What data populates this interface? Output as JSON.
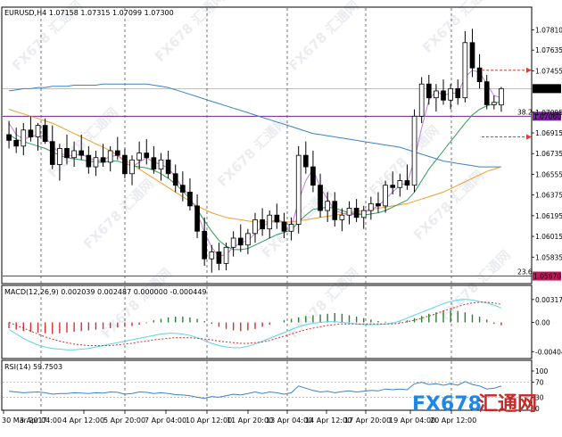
{
  "chart_data": [
    {
      "type": "candlestick",
      "header": "EURUSD,H4  1.07158 1.07315 1.07099 1.07300",
      "y_ticks": [
        "1.07810",
        "1.07635",
        "1.07455",
        "1.07300",
        "1.07095",
        "1.06915",
        "1.06735",
        "1.06555",
        "1.06375",
        "1.06195",
        "1.06015",
        "1.05835"
      ],
      "ylim": [
        1.0562,
        1.079
      ],
      "x_ticks": [
        "30 Mar 2017",
        "3 Apr 04:00",
        "4 Apr 12:00",
        "5 Apr 20:00",
        "7 Apr 04:00",
        "10 Apr 12:00",
        "11 Apr 20:00",
        "13 Apr 04:00",
        "14 Apr 12:00",
        "17 Apr 20:00",
        "19 Apr 04:00",
        "20 Apr 12:00"
      ],
      "levels": [
        {
          "label": "1.07300",
          "value": 1.073,
          "color": "#000000"
        },
        {
          "label": "1.07060",
          "value": 1.0706,
          "color": "#7b1fa2",
          "fib": "38.2"
        },
        {
          "label": "1.05670",
          "value": 1.0567,
          "color": "#c2185b",
          "fib": "23.6"
        }
      ],
      "candles": [
        [
          1.069,
          1.0702,
          1.0678,
          1.0685
        ],
        [
          1.0685,
          1.0696,
          1.0674,
          1.068
        ],
        [
          1.068,
          1.07,
          1.0672,
          1.0694
        ],
        [
          1.0694,
          1.0706,
          1.0684,
          1.0688
        ],
        [
          1.0688,
          1.07,
          1.0676,
          1.0698
        ],
        [
          1.0698,
          1.0704,
          1.0682,
          1.0684
        ],
        [
          1.0684,
          1.0698,
          1.066,
          1.0664
        ],
        [
          1.0664,
          1.0682,
          1.065,
          1.0678
        ],
        [
          1.0678,
          1.069,
          1.0664,
          1.067
        ],
        [
          1.067,
          1.0684,
          1.0662,
          1.0676
        ],
        [
          1.0676,
          1.069,
          1.0668,
          1.0672
        ],
        [
          1.0672,
          1.068,
          1.0656,
          1.0662
        ],
        [
          1.0662,
          1.0676,
          1.0654,
          1.067
        ],
        [
          1.067,
          1.0682,
          1.0662,
          1.0666
        ],
        [
          1.0666,
          1.068,
          1.0658,
          1.0676
        ],
        [
          1.0676,
          1.0688,
          1.0668,
          1.0672
        ],
        [
          1.0672,
          1.0678,
          1.0652,
          1.0656
        ],
        [
          1.0656,
          1.0672,
          1.0646,
          1.0668
        ],
        [
          1.0668,
          1.0684,
          1.066,
          1.0674
        ],
        [
          1.0674,
          1.0686,
          1.0664,
          1.067
        ],
        [
          1.067,
          1.068,
          1.0656,
          1.066
        ],
        [
          1.066,
          1.0674,
          1.065,
          1.0668
        ],
        [
          1.0668,
          1.0676,
          1.0652,
          1.0656
        ],
        [
          1.0656,
          1.0664,
          1.064,
          1.0646
        ],
        [
          1.0646,
          1.0658,
          1.0632,
          1.064
        ],
        [
          1.064,
          1.0652,
          1.0624,
          1.0628
        ],
        [
          1.0628,
          1.0638,
          1.06,
          1.0606
        ],
        [
          1.0606,
          1.0618,
          1.0576,
          1.0582
        ],
        [
          1.0582,
          1.0594,
          1.057,
          1.0588
        ],
        [
          1.0588,
          1.0596,
          1.0572,
          1.0578
        ],
        [
          1.0578,
          1.0596,
          1.0572,
          1.0592
        ],
        [
          1.0592,
          1.0606,
          1.0584,
          1.06
        ],
        [
          1.06,
          1.0612,
          1.0588,
          1.0594
        ],
        [
          1.0594,
          1.0608,
          1.0586,
          1.0604
        ],
        [
          1.0604,
          1.0622,
          1.0596,
          1.0616
        ],
        [
          1.0616,
          1.0626,
          1.0602,
          1.0608
        ],
        [
          1.0608,
          1.0624,
          1.06,
          1.062
        ],
        [
          1.062,
          1.063,
          1.0608,
          1.0614
        ],
        [
          1.0614,
          1.0622,
          1.06,
          1.0606
        ],
        [
          1.0606,
          1.0618,
          1.0598,
          1.0612
        ],
        [
          1.0612,
          1.068,
          1.0604,
          1.0672
        ],
        [
          1.0672,
          1.0684,
          1.0656,
          1.0662
        ],
        [
          1.0662,
          1.0676,
          1.064,
          1.0646
        ],
        [
          1.0646,
          1.0656,
          1.0618,
          1.0624
        ],
        [
          1.0624,
          1.064,
          1.0614,
          1.0632
        ],
        [
          1.0632,
          1.064,
          1.061,
          1.0616
        ],
        [
          1.0616,
          1.0626,
          1.0606,
          1.062
        ],
        [
          1.062,
          1.0632,
          1.0612,
          1.0626
        ],
        [
          1.0626,
          1.0634,
          1.0614,
          1.0618
        ],
        [
          1.0618,
          1.0628,
          1.0608,
          1.0624
        ],
        [
          1.0624,
          1.0636,
          1.0616,
          1.063
        ],
        [
          1.063,
          1.064,
          1.0622,
          1.0628
        ],
        [
          1.0628,
          1.065,
          1.0622,
          1.0646
        ],
        [
          1.0646,
          1.0658,
          1.0638,
          1.0644
        ],
        [
          1.0644,
          1.0656,
          1.0636,
          1.065
        ],
        [
          1.065,
          1.0664,
          1.0642,
          1.0646
        ],
        [
          1.0646,
          1.0712,
          1.064,
          1.0706
        ],
        [
          1.0706,
          1.074,
          1.07,
          1.0734
        ],
        [
          1.0734,
          1.0742,
          1.0716,
          1.0722
        ],
        [
          1.0722,
          1.0734,
          1.071,
          1.0728
        ],
        [
          1.0728,
          1.0738,
          1.0716,
          1.072
        ],
        [
          1.072,
          1.0734,
          1.0712,
          1.073
        ],
        [
          1.073,
          1.0738,
          1.0716,
          1.0722
        ],
        [
          1.0722,
          1.078,
          1.0718,
          1.077
        ],
        [
          1.077,
          1.0782,
          1.074,
          1.0748
        ],
        [
          1.0748,
          1.076,
          1.073,
          1.0736
        ],
        [
          1.0736,
          1.0742,
          1.0712,
          1.0716
        ],
        [
          1.0716,
          1.0724,
          1.0712,
          1.0718
        ],
        [
          1.07158,
          1.07315,
          1.07099,
          1.073
        ]
      ],
      "ma_fast": [
        1.069,
        1.0686,
        1.0684,
        1.0682,
        1.068,
        1.0678,
        1.0675,
        1.0672,
        1.067,
        1.0669,
        1.0668,
        1.0667,
        1.0666,
        1.0666,
        1.0667,
        1.0667,
        1.0665,
        1.0663,
        1.0662,
        1.0661,
        1.0659,
        1.0656,
        1.0652,
        1.0647,
        1.0641,
        1.0634,
        1.0625,
        1.0615,
        1.0606,
        1.0598,
        1.0593,
        1.059,
        1.059,
        1.0591,
        1.0594,
        1.0597,
        1.06,
        1.0603,
        1.0605,
        1.0607,
        1.0614,
        1.062,
        1.0625,
        1.0626,
        1.0627,
        1.0626,
        1.0624,
        1.0622,
        1.0621,
        1.062,
        1.0621,
        1.0622,
        1.0624,
        1.0627,
        1.063,
        1.0633,
        1.064,
        1.065,
        1.066,
        1.0668,
        1.0676,
        1.0684,
        1.0692,
        1.07,
        1.0707,
        1.0712,
        1.0715,
        1.0717,
        1.0719
      ],
      "ma_mid": [
        1.0712,
        1.071,
        1.0708,
        1.0706,
        1.0704,
        1.0702,
        1.07,
        1.0697,
        1.0694,
        1.0691,
        1.0688,
        1.0685,
        1.0682,
        1.0679,
        1.0676,
        1.0672,
        1.0668,
        1.0664,
        1.066,
        1.0656,
        1.0652,
        1.0648,
        1.0644,
        1.064,
        1.0636,
        1.0632,
        1.0628,
        1.0625,
        1.0622,
        1.062,
        1.0618,
        1.0617,
        1.0616,
        1.0615,
        1.0614,
        1.0614,
        1.0614,
        1.0614,
        1.0614,
        1.0614,
        1.0615,
        1.0616,
        1.0617,
        1.0618,
        1.0619,
        1.062,
        1.0621,
        1.0622,
        1.0623,
        1.0624,
        1.0625,
        1.0626,
        1.0627,
        1.0628,
        1.0629,
        1.063,
        1.0632,
        1.0634,
        1.0636,
        1.0638,
        1.064,
        1.0643,
        1.0646,
        1.0649,
        1.0652,
        1.0655,
        1.0658,
        1.066,
        1.0662
      ],
      "ma_slow": [
        1.0728,
        1.0729,
        1.073,
        1.073,
        1.0731,
        1.0731,
        1.0732,
        1.0732,
        1.0732,
        1.0733,
        1.0733,
        1.0733,
        1.0733,
        1.0734,
        1.0734,
        1.0734,
        1.0734,
        1.0734,
        1.0734,
        1.0734,
        1.0733,
        1.0732,
        1.0731,
        1.0729,
        1.0727,
        1.0725,
        1.0723,
        1.0721,
        1.0719,
        1.0717,
        1.0715,
        1.0713,
        1.0711,
        1.0709,
        1.0707,
        1.0705,
        1.0703,
        1.0701,
        1.0699,
        1.0697,
        1.0695,
        1.0693,
        1.0691,
        1.069,
        1.0689,
        1.0688,
        1.0687,
        1.0686,
        1.0685,
        1.0684,
        1.0683,
        1.0682,
        1.0681,
        1.068,
        1.0679,
        1.0677,
        1.0675,
        1.0673,
        1.0671,
        1.0669,
        1.0667,
        1.0666,
        1.0665,
        1.0664,
        1.0663,
        1.0662,
        1.0662,
        1.0662,
        1.0662
      ],
      "ma_violet": [
        1.07,
        1.069,
        1.0686,
        1.0688,
        1.069,
        1.0688,
        1.068,
        1.0674,
        1.0672,
        1.0672,
        1.0673,
        1.067,
        1.0667,
        1.0668,
        1.0671,
        1.0672,
        1.0666,
        1.0662,
        1.0666,
        1.067,
        1.0666,
        1.0664,
        1.0661,
        1.0653,
        1.0644,
        1.0636,
        1.0622,
        1.0605,
        1.0592,
        1.0584,
        1.0586,
        1.0592,
        1.0596,
        1.0598,
        1.0604,
        1.061,
        1.0614,
        1.0616,
        1.0614,
        1.061,
        1.0632,
        1.065,
        1.066,
        1.0644,
        1.0634,
        1.0624,
        1.0622,
        1.062,
        1.0621,
        1.0622,
        1.0625,
        1.0628,
        1.0634,
        1.064,
        1.0646,
        1.0648,
        1.0668,
        1.0696,
        1.072,
        1.0728,
        1.0724,
        1.0726,
        1.0726,
        1.074,
        1.0746,
        1.0744,
        1.0734,
        1.0724,
        1.0722
      ],
      "arrows": [
        {
          "value": 1.0746,
          "dir": "right"
        },
        {
          "value": 1.0688,
          "dir": "right"
        }
      ]
    },
    {
      "type": "macd",
      "header": "MACD(12,26,9) 0.002039 0.002487 0.000000 -0.000449",
      "y_ticks": [
        "0.003174",
        "0.00",
        "-0.004043"
      ],
      "ylim": [
        -0.0045,
        0.0034
      ],
      "histogram": [
        -0.0008,
        -0.001,
        -0.0012,
        -0.0013,
        -0.0014,
        -0.0015,
        -0.0016,
        -0.0015,
        -0.0014,
        -0.0013,
        -0.0012,
        -0.0011,
        -0.001,
        -0.0009,
        -0.0008,
        -0.0007,
        -0.0006,
        -0.0005,
        -0.0003,
        -0.0001,
        0.0003,
        0.0005,
        0.0007,
        0.0008,
        0.0008,
        0.0007,
        0.0005,
        0.0002,
        -0.0002,
        -0.0006,
        -0.0009,
        -0.0011,
        -0.0012,
        -0.0011,
        -0.0009,
        -0.0006,
        -0.0003,
        0.0,
        0.0003,
        0.0005,
        0.0007,
        0.0009,
        0.001,
        0.0011,
        0.0012,
        0.0013,
        0.0012,
        0.001,
        0.0008,
        0.0006,
        0.0004,
        0.0002,
        0.0001,
        -0.0001,
        0.0001,
        0.0003,
        0.0006,
        0.0009,
        0.0012,
        0.0014,
        0.0016,
        0.0017,
        0.0016,
        0.0014,
        0.0011,
        0.0008,
        0.0004,
        -0.0002,
        -0.0004
      ],
      "macd_line": [
        -0.001,
        -0.0016,
        -0.0022,
        -0.0027,
        -0.0031,
        -0.0034,
        -0.0036,
        -0.0037,
        -0.0038,
        -0.0038,
        -0.0037,
        -0.0036,
        -0.0034,
        -0.0032,
        -0.003,
        -0.0028,
        -0.0026,
        -0.0024,
        -0.0022,
        -0.002,
        -0.0018,
        -0.0016,
        -0.0015,
        -0.0015,
        -0.0016,
        -0.0018,
        -0.0021,
        -0.0025,
        -0.0029,
        -0.0032,
        -0.0034,
        -0.0035,
        -0.0035,
        -0.0033,
        -0.003,
        -0.0026,
        -0.0022,
        -0.0018,
        -0.0014,
        -0.001,
        -0.0006,
        -0.0003,
        -0.0001,
        0.0,
        0.0001,
        0.0001,
        0.0,
        -0.0001,
        -0.0002,
        -0.0003,
        -0.0003,
        -0.0003,
        -0.0002,
        -0.0001,
        0.0002,
        0.0006,
        0.001,
        0.0014,
        0.0018,
        0.0022,
        0.0026,
        0.0029,
        0.0031,
        0.0032,
        0.0031,
        0.0029,
        0.0027,
        0.0024,
        0.002
      ],
      "signal_line": [
        0.0,
        -0.0004,
        -0.0008,
        -0.0012,
        -0.0016,
        -0.002,
        -0.0023,
        -0.0026,
        -0.0028,
        -0.003,
        -0.0031,
        -0.0032,
        -0.0032,
        -0.0032,
        -0.0032,
        -0.0031,
        -0.003,
        -0.0029,
        -0.0027,
        -0.0026,
        -0.0024,
        -0.0023,
        -0.0022,
        -0.0021,
        -0.0021,
        -0.0021,
        -0.0022,
        -0.0023,
        -0.0024,
        -0.0026,
        -0.0027,
        -0.0028,
        -0.0029,
        -0.0029,
        -0.0028,
        -0.0027,
        -0.0025,
        -0.0022,
        -0.0019,
        -0.0016,
        -0.0013,
        -0.001,
        -0.0008,
        -0.0006,
        -0.0004,
        -0.0003,
        -0.0002,
        -0.0002,
        -0.0002,
        -0.0002,
        -0.0002,
        -0.0002,
        -0.0002,
        -0.0002,
        -0.0001,
        0.0001,
        0.0003,
        0.0006,
        0.0009,
        0.0012,
        0.0016,
        0.0019,
        0.0022,
        0.0025,
        0.0027,
        0.0028,
        0.0028,
        0.0027,
        0.0025
      ]
    },
    {
      "type": "line",
      "header": "RSI(14) 59.7503",
      "y_ticks": [
        "100",
        "70",
        "30",
        "0"
      ],
      "ylim": [
        0,
        100
      ],
      "values": [
        46,
        44,
        42,
        43,
        44,
        42,
        38,
        40,
        40,
        42,
        41,
        40,
        42,
        41,
        44,
        43,
        38,
        40,
        44,
        43,
        40,
        42,
        40,
        37,
        36,
        34,
        30,
        27,
        32,
        30,
        34,
        38,
        36,
        40,
        44,
        40,
        44,
        42,
        38,
        42,
        60,
        54,
        48,
        44,
        46,
        42,
        45,
        47,
        44,
        46,
        48,
        47,
        52,
        50,
        52,
        50,
        66,
        70,
        64,
        66,
        62,
        66,
        62,
        72,
        64,
        60,
        52,
        54,
        59.75
      ]
    }
  ],
  "watermark": {
    "tile": "FX678 汇通网",
    "brand_fx": "FX678",
    "brand_cn": "汇通网",
    "brand_color": "#1e88e5",
    "brand_cn_color": "#c62828"
  },
  "colors": {
    "ma_fast": "#2e9b5e",
    "ma_mid": "#f39c28",
    "ma_slow": "#3b82c4",
    "ma_violet": "#c77dd6",
    "macd_hist_pos": "#2e7d32",
    "macd_hist_neg": "#d32f2f",
    "macd_line": "#5fd3e6",
    "signal_line": "#d32f2f",
    "rsi_line": "#3b82c4",
    "arrow": "#e53935"
  }
}
